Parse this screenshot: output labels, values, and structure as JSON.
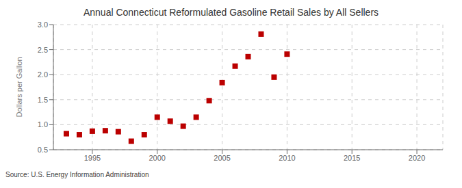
{
  "chart_data": {
    "type": "scatter",
    "title": "Annual Connecticut Reformulated Gasoline Retail Sales by All Sellers",
    "ylabel": "Dollars per Gallon",
    "annotations": [
      "Source: U.S. Energy Information Administration"
    ],
    "x": [
      1993,
      1994,
      1995,
      1996,
      1997,
      1998,
      1999,
      2000,
      2001,
      2002,
      2003,
      2004,
      2005,
      2006,
      2007,
      2008,
      2009,
      2010
    ],
    "values": [
      0.82,
      0.8,
      0.87,
      0.88,
      0.86,
      0.67,
      0.8,
      1.15,
      1.07,
      0.97,
      1.15,
      1.48,
      1.84,
      2.17,
      2.36,
      2.81,
      1.95,
      2.41
    ],
    "color": "#bb0000",
    "marker": "square",
    "xlim": [
      1992,
      2022
    ],
    "ylim": [
      0.5,
      3.0
    ],
    "xticks": [
      1995,
      2000,
      2005,
      2010,
      2015,
      2020
    ],
    "yticks": [
      0.5,
      {
        "value": 1,
        "label": "1.0"
      },
      1.5,
      {
        "value": 2,
        "label": "2.0"
      },
      2.5,
      {
        "value": 3,
        "label": "3.0"
      }
    ],
    "grid": true
  }
}
